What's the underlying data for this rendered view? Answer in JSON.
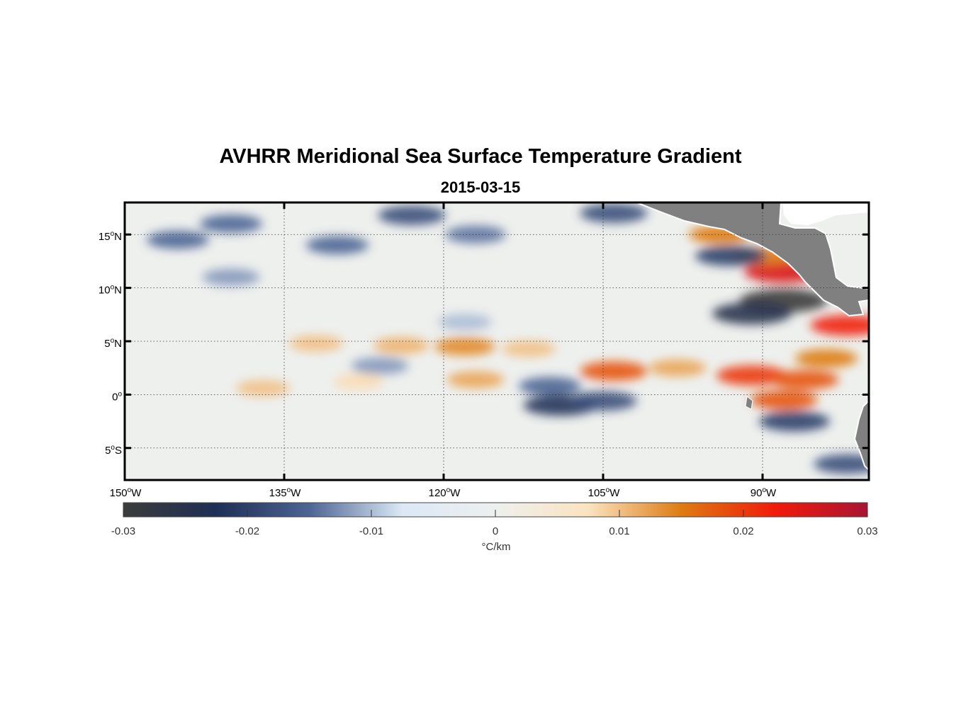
{
  "title": "AVHRR Meridional Sea Surface Temperature Gradient",
  "subtitle": "2015-03-15",
  "map": {
    "lon_range": [
      -150,
      -80
    ],
    "lat_range": [
      -8,
      18
    ],
    "lon_ticks": [
      {
        "value": -150,
        "deg": "150",
        "suffix": "W"
      },
      {
        "value": -135,
        "deg": "135",
        "suffix": "W"
      },
      {
        "value": -120,
        "deg": "120",
        "suffix": "W"
      },
      {
        "value": -105,
        "deg": "105",
        "suffix": "W"
      },
      {
        "value": -90,
        "deg": "90",
        "suffix": "W"
      }
    ],
    "lat_ticks": [
      {
        "value": 15,
        "deg": "15",
        "suffix": "N"
      },
      {
        "value": 10,
        "deg": "10",
        "suffix": "N"
      },
      {
        "value": 5,
        "deg": "5",
        "suffix": "N"
      },
      {
        "value": 0,
        "deg": "0",
        "suffix": ""
      },
      {
        "value": -5,
        "deg": "5",
        "suffix": "S"
      }
    ],
    "grid": true,
    "land_color": "#808080",
    "gradient_features": [
      {
        "lon": -132,
        "lat": 4.8,
        "value": 0.01
      },
      {
        "lon": -124,
        "lat": 4.6,
        "value": 0.011
      },
      {
        "lon": -118,
        "lat": 4.5,
        "value": 0.014
      },
      {
        "lon": -112,
        "lat": 4.3,
        "value": 0.01
      },
      {
        "lon": -104,
        "lat": 2.2,
        "value": 0.018
      },
      {
        "lon": -98,
        "lat": 2.5,
        "value": 0.012
      },
      {
        "lon": -91,
        "lat": 1.8,
        "value": 0.02
      },
      {
        "lon": -86,
        "lat": 1.4,
        "value": 0.018
      },
      {
        "lon": -84,
        "lat": 3.4,
        "value": 0.015
      },
      {
        "lon": -88,
        "lat": 11.5,
        "value": 0.025
      },
      {
        "lon": -90,
        "lat": 13,
        "value": 0.015
      },
      {
        "lon": -94,
        "lat": 15,
        "value": 0.015
      },
      {
        "lon": -82,
        "lat": 6.5,
        "value": 0.022
      },
      {
        "lon": -88,
        "lat": -0.5,
        "value": 0.018
      },
      {
        "lon": -117,
        "lat": 1.4,
        "value": 0.012
      },
      {
        "lon": -137,
        "lat": 0.6,
        "value": 0.01
      },
      {
        "lon": -128,
        "lat": 1.2,
        "value": 0.008
      },
      {
        "lon": -88,
        "lat": 8.8,
        "value": -0.03
      },
      {
        "lon": -91,
        "lat": 7.6,
        "value": -0.025
      },
      {
        "lon": -93,
        "lat": 13,
        "value": -0.02
      },
      {
        "lon": -109,
        "lat": -1,
        "value": -0.022
      },
      {
        "lon": -105,
        "lat": -0.6,
        "value": -0.018
      },
      {
        "lon": -87,
        "lat": -2.5,
        "value": -0.02
      },
      {
        "lon": -140,
        "lat": 16,
        "value": -0.015
      },
      {
        "lon": -130,
        "lat": 14,
        "value": -0.015
      },
      {
        "lon": -123,
        "lat": 16.8,
        "value": -0.018
      },
      {
        "lon": -117,
        "lat": 15,
        "value": -0.014
      },
      {
        "lon": -104,
        "lat": 17,
        "value": -0.018
      },
      {
        "lon": -140,
        "lat": 11,
        "value": -0.012
      },
      {
        "lon": -145,
        "lat": 14.5,
        "value": -0.015
      },
      {
        "lon": -118,
        "lat": 6.8,
        "value": -0.01
      },
      {
        "lon": -110,
        "lat": 0.8,
        "value": -0.015
      },
      {
        "lon": -126,
        "lat": 2.7,
        "value": -0.012
      },
      {
        "lon": -82,
        "lat": -6.5,
        "value": -0.018
      }
    ]
  },
  "colorbar": {
    "min": -0.03,
    "max": 0.03,
    "tick_labels": [
      "-0.03",
      "-0.02",
      "-0.01",
      "0",
      "0.01",
      "0.02",
      "0.03"
    ],
    "tick_values": [
      -0.03,
      -0.02,
      -0.01,
      0,
      0.01,
      0.02,
      0.03
    ],
    "units": "°C/km",
    "stops": [
      "#3c3c3c",
      "#1e2f55",
      "#4d6593",
      "#dbe8f6",
      "#eef0ee",
      "#fbe3c0",
      "#de7b12",
      "#f11b0a",
      "#a91434"
    ]
  }
}
